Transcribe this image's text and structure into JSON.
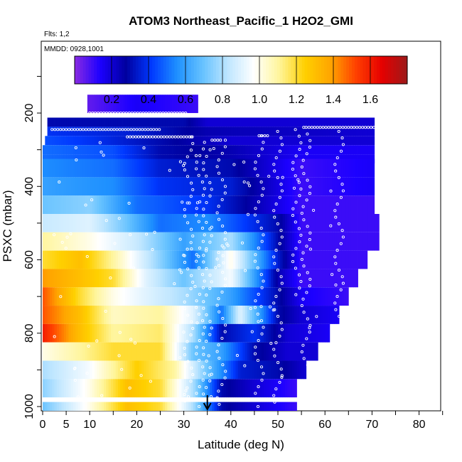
{
  "chart_data": {
    "type": "heatmap",
    "title": "ATOM3 Northeast_Pacific_1 H2O2_GMI",
    "flights_label": "Flts: 1,2",
    "dates_label": "MMDD: 0928,1001",
    "xlabel": "Latitude (deg N)",
    "ylabel": "PSXC (mbar)",
    "xlim": [
      0,
      85
    ],
    "ylim": [
      1000,
      0
    ],
    "x_ticks": [
      0,
      5,
      10,
      20,
      30,
      40,
      50,
      60,
      70,
      80
    ],
    "y_ticks": [
      200,
      400,
      600,
      800,
      1000
    ],
    "colorbar": {
      "range": [
        0,
        1.8
      ],
      "ticks": [
        0.2,
        0.4,
        0.6,
        0.8,
        1.0,
        1.2,
        1.4,
        1.6
      ],
      "tick_labels": [
        "0.2",
        "0.4",
        "0.6",
        "0.8",
        "1.0",
        "1.2",
        "1.4",
        "1.6"
      ],
      "colors": [
        "#8a2be2",
        "#1c00ff",
        "#00009f",
        "#0038ff",
        "#1e90ff",
        "#66c2ff",
        "#bfe6ff",
        "#ffffff",
        "#fff59a",
        "#ffd000",
        "#ffa500",
        "#ff4000",
        "#e60000",
        "#9c1a1a"
      ]
    },
    "arrow_latitude": 35,
    "rows": [
      {
        "p": 175,
        "dp": 50,
        "lat0": 9.5,
        "lat1": 33,
        "knots": [
          [
            9.5,
            0.05
          ],
          [
            20,
            0.15
          ],
          [
            33,
            0.1
          ]
        ]
      },
      {
        "p": 225,
        "dp": 25,
        "lat0": 1,
        "lat1": 70.5,
        "knots": [
          [
            1,
            0.3
          ],
          [
            30,
            0.3
          ],
          [
            35,
            0.2
          ],
          [
            70.5,
            0.2
          ]
        ]
      },
      {
        "p": 250,
        "dp": 25,
        "lat0": 1,
        "lat1": 70.5,
        "knots": [
          [
            1,
            0.4
          ],
          [
            20,
            0.35
          ],
          [
            35,
            0.25
          ],
          [
            70.5,
            0.2
          ]
        ]
      },
      {
        "p": 275,
        "dp": 25,
        "lat0": 0.5,
        "lat1": 70.5,
        "knots": [
          [
            0.5,
            0.45
          ],
          [
            10,
            0.4
          ],
          [
            25,
            0.3
          ],
          [
            40,
            0.2
          ],
          [
            70.5,
            0.2
          ]
        ]
      },
      {
        "p": 300,
        "dp": 25,
        "lat0": 0,
        "lat1": 70.5,
        "knots": [
          [
            0,
            0.5
          ],
          [
            15,
            0.45
          ],
          [
            25,
            0.3
          ],
          [
            40,
            0.25
          ],
          [
            55,
            0.15
          ],
          [
            70.5,
            0.15
          ]
        ]
      },
      {
        "p": 325,
        "dp": 25,
        "lat0": 0,
        "lat1": 70.5,
        "knots": [
          [
            0,
            0.5
          ],
          [
            15,
            0.45
          ],
          [
            25,
            0.3
          ],
          [
            40,
            0.25
          ],
          [
            55,
            0.15
          ],
          [
            70.5,
            0.15
          ]
        ]
      },
      {
        "p": 350,
        "dp": 50,
        "lat0": 0,
        "lat1": 70.5,
        "knots": [
          [
            0,
            0.55
          ],
          [
            15,
            0.5
          ],
          [
            25,
            0.35
          ],
          [
            40,
            0.3
          ],
          [
            55,
            0.1
          ],
          [
            70.5,
            0.15
          ]
        ]
      },
      {
        "p": 400,
        "dp": 50,
        "lat0": 0,
        "lat1": 70.5,
        "knots": [
          [
            0,
            0.6
          ],
          [
            15,
            0.55
          ],
          [
            25,
            0.4
          ],
          [
            40,
            0.35
          ],
          [
            55,
            0.1
          ],
          [
            70.5,
            0.15
          ]
        ]
      },
      {
        "p": 450,
        "dp": 50,
        "lat0": 0,
        "lat1": 70.5,
        "knots": [
          [
            0,
            0.7
          ],
          [
            10,
            0.75
          ],
          [
            20,
            0.5
          ],
          [
            35,
            0.4
          ],
          [
            55,
            0.1
          ],
          [
            70.5,
            0.1
          ]
        ]
      },
      {
        "p": 500,
        "dp": 50,
        "lat0": 0,
        "lat1": 71.5,
        "knots": [
          [
            0,
            0.85
          ],
          [
            10,
            0.9
          ],
          [
            18,
            0.7
          ],
          [
            25,
            0.5
          ],
          [
            35,
            0.55
          ],
          [
            50,
            0.3
          ],
          [
            55,
            0.1
          ],
          [
            71.5,
            0.1
          ]
        ]
      },
      {
        "p": 550,
        "dp": 50,
        "lat0": 0,
        "lat1": 71.5,
        "knots": [
          [
            0,
            1.1
          ],
          [
            10,
            1.0
          ],
          [
            20,
            0.85
          ],
          [
            30,
            0.6
          ],
          [
            40,
            0.8
          ],
          [
            50,
            0.3
          ],
          [
            55,
            0.1
          ],
          [
            71.5,
            0.1
          ]
        ]
      },
      {
        "p": 600,
        "dp": 50,
        "lat0": 0,
        "lat1": 69,
        "knots": [
          [
            0,
            1.2
          ],
          [
            8,
            1.3
          ],
          [
            15,
            1.1
          ],
          [
            25,
            0.75
          ],
          [
            32,
            0.5
          ],
          [
            40,
            1.0
          ],
          [
            50,
            0.35
          ],
          [
            55,
            0.1
          ],
          [
            69,
            0.1
          ]
        ]
      },
      {
        "p": 650,
        "dp": 50,
        "lat0": 0,
        "lat1": 67,
        "knots": [
          [
            0,
            1.4
          ],
          [
            8,
            1.3
          ],
          [
            15,
            1.2
          ],
          [
            22,
            0.9
          ],
          [
            30,
            0.7
          ],
          [
            40,
            0.95
          ],
          [
            50,
            0.25
          ],
          [
            55,
            0.1
          ],
          [
            67,
            0.1
          ]
        ]
      },
      {
        "p": 700,
        "dp": 50,
        "lat0": 0,
        "lat1": 65,
        "knots": [
          [
            0,
            1.5
          ],
          [
            8,
            1.2
          ],
          [
            15,
            1.0
          ],
          [
            22,
            0.9
          ],
          [
            30,
            0.8
          ],
          [
            40,
            0.6
          ],
          [
            50,
            0.3
          ],
          [
            55,
            0.15
          ],
          [
            65,
            0.1
          ]
        ]
      },
      {
        "p": 750,
        "dp": 50,
        "lat0": 0,
        "lat1": 63,
        "knots": [
          [
            0,
            1.5
          ],
          [
            8,
            1.3
          ],
          [
            15,
            1.05
          ],
          [
            25,
            1.1
          ],
          [
            32,
            0.9
          ],
          [
            38,
            0.5
          ],
          [
            42,
            0.9
          ],
          [
            50,
            0.3
          ],
          [
            55,
            0.2
          ],
          [
            63,
            0.15
          ]
        ]
      },
      {
        "p": 800,
        "dp": 50,
        "lat0": 0,
        "lat1": 61,
        "knots": [
          [
            0,
            1.6
          ],
          [
            8,
            1.3
          ],
          [
            15,
            1.1
          ],
          [
            25,
            1.15
          ],
          [
            32,
            0.8
          ],
          [
            38,
            0.3
          ],
          [
            45,
            0.4
          ],
          [
            52,
            0.2
          ],
          [
            61,
            0.15
          ]
        ]
      },
      {
        "p": 850,
        "dp": 50,
        "lat0": 0,
        "lat1": 58.5,
        "knots": [
          [
            0,
            1.0
          ],
          [
            8,
            1.1
          ],
          [
            15,
            1.2
          ],
          [
            25,
            1.2
          ],
          [
            32,
            0.7
          ],
          [
            38,
            0.6
          ],
          [
            45,
            0.3
          ],
          [
            52,
            0.2
          ],
          [
            58.5,
            0.2
          ]
        ]
      },
      {
        "p": 900,
        "dp": 50,
        "lat0": 0,
        "lat1": 56,
        "knots": [
          [
            0,
            0.8
          ],
          [
            10,
            0.95
          ],
          [
            20,
            1.25
          ],
          [
            28,
            1.1
          ],
          [
            35,
            0.7
          ],
          [
            42,
            0.35
          ],
          [
            50,
            0.3
          ],
          [
            56,
            0.2
          ]
        ]
      },
      {
        "p": 950,
        "dp": 50,
        "lat0": 0,
        "lat1": 54,
        "knots": [
          [
            0,
            0.75
          ],
          [
            10,
            1.0
          ],
          [
            18,
            1.3
          ],
          [
            25,
            1.2
          ],
          [
            32,
            0.8
          ],
          [
            38,
            0.3
          ],
          [
            45,
            0.2
          ],
          [
            54,
            0.1
          ]
        ]
      },
      {
        "p": 1000,
        "dp": 25,
        "lat0": 0,
        "lat1": 54,
        "knots": [
          [
            0,
            0.7
          ],
          [
            10,
            1.0
          ],
          [
            18,
            1.3
          ],
          [
            25,
            1.2
          ],
          [
            32,
            0.8
          ],
          [
            38,
            0.3
          ],
          [
            45,
            0.2
          ],
          [
            54,
            0.1
          ]
        ]
      }
    ]
  }
}
